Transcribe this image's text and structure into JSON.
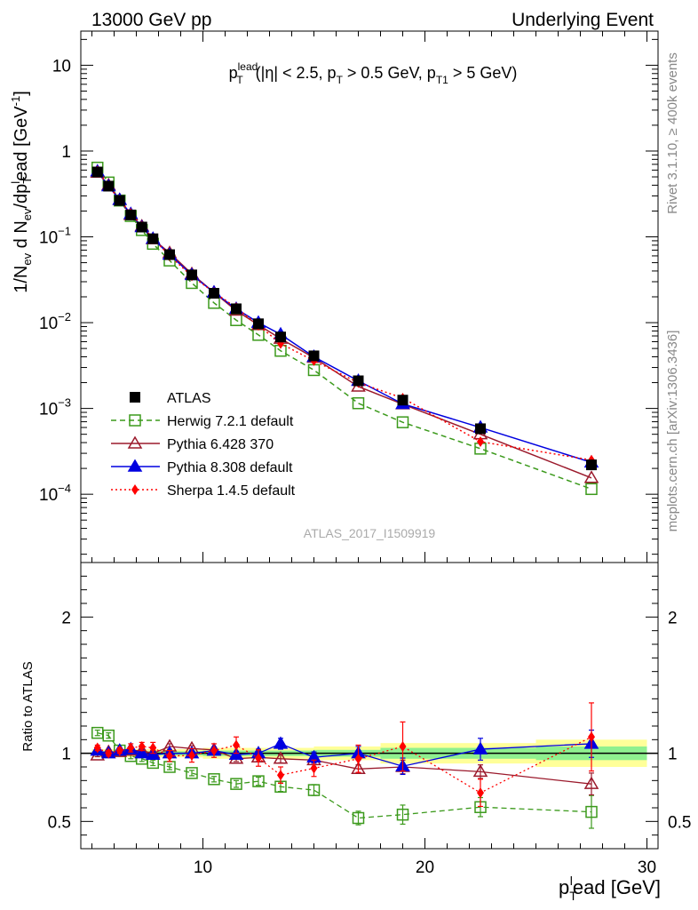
{
  "header": {
    "left": "13000 GeV pp",
    "right": "Underlying Event"
  },
  "side_text": {
    "rivet": "Rivet 3.1.10, ≥ 400k events",
    "mcplots": "mcplots.cern.ch [arXiv:1306.3436]"
  },
  "watermark": "ATLAS_2017_I1509919",
  "colors": {
    "atlas": "#000000",
    "herwig": "#3c9a1c",
    "pythia6": "#9b1a2c",
    "pythia8": "#0000e0",
    "sherpa": "#ff0000",
    "band_inner": "#8ff08f",
    "band_outer": "#ffff99"
  },
  "chart_data": [
    {
      "type": "line",
      "panel": "main",
      "title": "p_T^lead (|η| < 2.5, p_T > 0.5 GeV, p_T1 > 5 GeV)",
      "title_parts": {
        "p": "p",
        "sub_T": "T",
        "sup_lead": "lead",
        "open": "(|η| < 2.5, p",
        "sub_T2": "T",
        "mid": " > 0.5 GeV, p",
        "sub_T1": "T1",
        "close": " > 5 GeV)"
      },
      "xlabel": "p_T^lead [GeV]",
      "xlabel_parts": {
        "p": "p",
        "sub": "T",
        "sup": "l",
        "rest": "ead [GeV]"
      },
      "ylabel": "1/N_ev d N_ev/dp_T^lead [GeV^-1]",
      "ylabel_parts": {
        "a": "1/N",
        "sub_ev": "ev",
        "b": " d N",
        "sub_ev2": "ev",
        "c": "/dp",
        "sub_T": "T",
        "sup_l": "l",
        "d": "ead [GeV",
        "sup_m1": "-1",
        "e": "]"
      },
      "yscale": "log",
      "xlim": [
        4.5,
        30.5
      ],
      "ylim": [
        1.6e-05,
        25
      ],
      "y_ticks": [
        {
          "v": 0.0001,
          "m": "10",
          "e": "−4"
        },
        {
          "v": 0.001,
          "m": "10",
          "e": "−3"
        },
        {
          "v": 0.01,
          "m": "10",
          "e": "−2"
        },
        {
          "v": 0.1,
          "m": "10",
          "e": "−1"
        },
        {
          "v": 1,
          "m": "1",
          "e": ""
        },
        {
          "v": 10,
          "m": "10",
          "e": ""
        }
      ],
      "x": [
        5.25,
        5.75,
        6.25,
        6.75,
        7.25,
        7.75,
        8.5,
        9.5,
        10.5,
        11.5,
        12.5,
        13.5,
        15.0,
        17.0,
        19.0,
        22.5,
        27.5
      ],
      "legend_position": "lower-left",
      "series": [
        {
          "name": "ATLAS",
          "key": "atlas",
          "marker": "square-filled",
          "line": "none",
          "values": [
            0.57,
            0.39,
            0.265,
            0.18,
            0.13,
            0.095,
            0.062,
            0.036,
            0.022,
            0.0145,
            0.0097,
            0.0068,
            0.0041,
            0.0021,
            0.00125,
            0.00058,
            0.00022
          ]
        },
        {
          "name": "Herwig 7.2.1 default",
          "key": "herwig",
          "marker": "square-open",
          "line": "dashed",
          "values": [
            0.64,
            0.43,
            0.265,
            0.175,
            0.12,
            0.083,
            0.053,
            0.029,
            0.017,
            0.0107,
            0.0072,
            0.0047,
            0.0028,
            0.00115,
            0.00069,
            0.00034,
            0.000115
          ]
        },
        {
          "name": "Pythia 6.428 370",
          "key": "pythia6",
          "marker": "triangle-open",
          "line": "solid",
          "values": [
            0.56,
            0.4,
            0.27,
            0.18,
            0.133,
            0.094,
            0.065,
            0.037,
            0.0225,
            0.0138,
            0.0094,
            0.0065,
            0.0039,
            0.0018,
            0.00112,
            0.0005,
            0.000155
          ]
        },
        {
          "name": "Pythia 8.308 default",
          "key": "pythia8",
          "marker": "triangle-filled",
          "line": "solid",
          "values": [
            0.58,
            0.39,
            0.27,
            0.185,
            0.13,
            0.095,
            0.062,
            0.036,
            0.0225,
            0.0145,
            0.01,
            0.0073,
            0.004,
            0.0021,
            0.00113,
            0.0006,
            0.000235
          ]
        },
        {
          "name": "Sherpa 1.4.5 default",
          "key": "sherpa",
          "marker": "diamond-filled",
          "line": "dotted",
          "values": [
            0.59,
            0.39,
            0.27,
            0.188,
            0.134,
            0.096,
            0.06,
            0.035,
            0.0225,
            0.015,
            0.0093,
            0.0057,
            0.0036,
            0.002,
            0.00132,
            0.00041,
            0.00025
          ]
        }
      ]
    },
    {
      "type": "line",
      "panel": "ratio",
      "ylabel": "Ratio to ATLAS",
      "xlim": [
        4.5,
        30.5
      ],
      "ylim": [
        0.3,
        2.4
      ],
      "y_ticks": [
        0.5,
        1,
        2
      ],
      "y_tick_labels": [
        "0.5",
        "1",
        "2"
      ],
      "x_ticks": [
        10,
        20,
        30
      ],
      "x_tick_labels": [
        "10",
        "20",
        "30"
      ],
      "x": [
        5.25,
        5.75,
        6.25,
        6.75,
        7.25,
        7.75,
        8.5,
        9.5,
        10.5,
        11.5,
        12.5,
        13.5,
        15.0,
        17.0,
        19.0,
        22.5,
        27.5
      ],
      "bins": [
        {
          "lo": 5,
          "hi": 10,
          "inner": 0.015,
          "outer": 0.03
        },
        {
          "lo": 10,
          "hi": 15,
          "inner": 0.02,
          "outer": 0.04
        },
        {
          "lo": 15,
          "hi": 18,
          "inner": 0.025,
          "outer": 0.05
        },
        {
          "lo": 18,
          "hi": 25,
          "inner": 0.04,
          "outer": 0.075
        },
        {
          "lo": 25,
          "hi": 30,
          "inner": 0.05,
          "outer": 0.1
        }
      ],
      "series": [
        {
          "key": "herwig",
          "values": [
            1.15,
            1.13,
            1.02,
            0.98,
            0.96,
            0.93,
            0.9,
            0.855,
            0.81,
            0.775,
            0.795,
            0.755,
            0.73,
            0.525,
            0.55,
            0.605,
            0.57
          ],
          "errors": [
            0.02,
            0.02,
            0.02,
            0.02,
            0.02,
            0.02,
            0.02,
            0.02,
            0.02,
            0.025,
            0.03,
            0.035,
            0.04,
            0.05,
            0.07,
            0.07,
            0.12
          ]
        },
        {
          "key": "pythia6",
          "values": [
            0.985,
            1.01,
            1.01,
            1.02,
            1.02,
            1.0,
            1.05,
            1.035,
            1.025,
            0.96,
            0.97,
            0.96,
            0.95,
            0.885,
            0.9,
            0.865,
            0.775
          ],
          "errors": [
            0.01,
            0.01,
            0.01,
            0.015,
            0.015,
            0.02,
            0.02,
            0.02,
            0.02,
            0.02,
            0.03,
            0.03,
            0.03,
            0.03,
            0.05,
            0.05,
            0.08
          ]
        },
        {
          "key": "pythia8",
          "values": [
            1.02,
            1.0,
            1.02,
            1.03,
            1.0,
            0.99,
            1.0,
            1.0,
            1.02,
            0.99,
            1.0,
            1.07,
            0.97,
            1.0,
            0.905,
            1.03,
            1.07
          ],
          "errors": [
            0.01,
            0.01,
            0.01,
            0.015,
            0.015,
            0.02,
            0.02,
            0.02,
            0.02,
            0.025,
            0.03,
            0.04,
            0.04,
            0.05,
            0.06,
            0.08,
            0.1
          ]
        },
        {
          "key": "sherpa",
          "values": [
            1.04,
            1.0,
            1.02,
            1.04,
            1.05,
            1.04,
            0.98,
            0.985,
            1.02,
            1.06,
            0.965,
            0.84,
            0.89,
            0.96,
            1.05,
            0.71,
            1.12
          ],
          "errors": [
            0.02,
            0.02,
            0.02,
            0.03,
            0.03,
            0.04,
            0.04,
            0.05,
            0.05,
            0.06,
            0.06,
            0.06,
            0.06,
            0.1,
            0.18,
            0.1,
            0.25
          ]
        }
      ]
    }
  ]
}
